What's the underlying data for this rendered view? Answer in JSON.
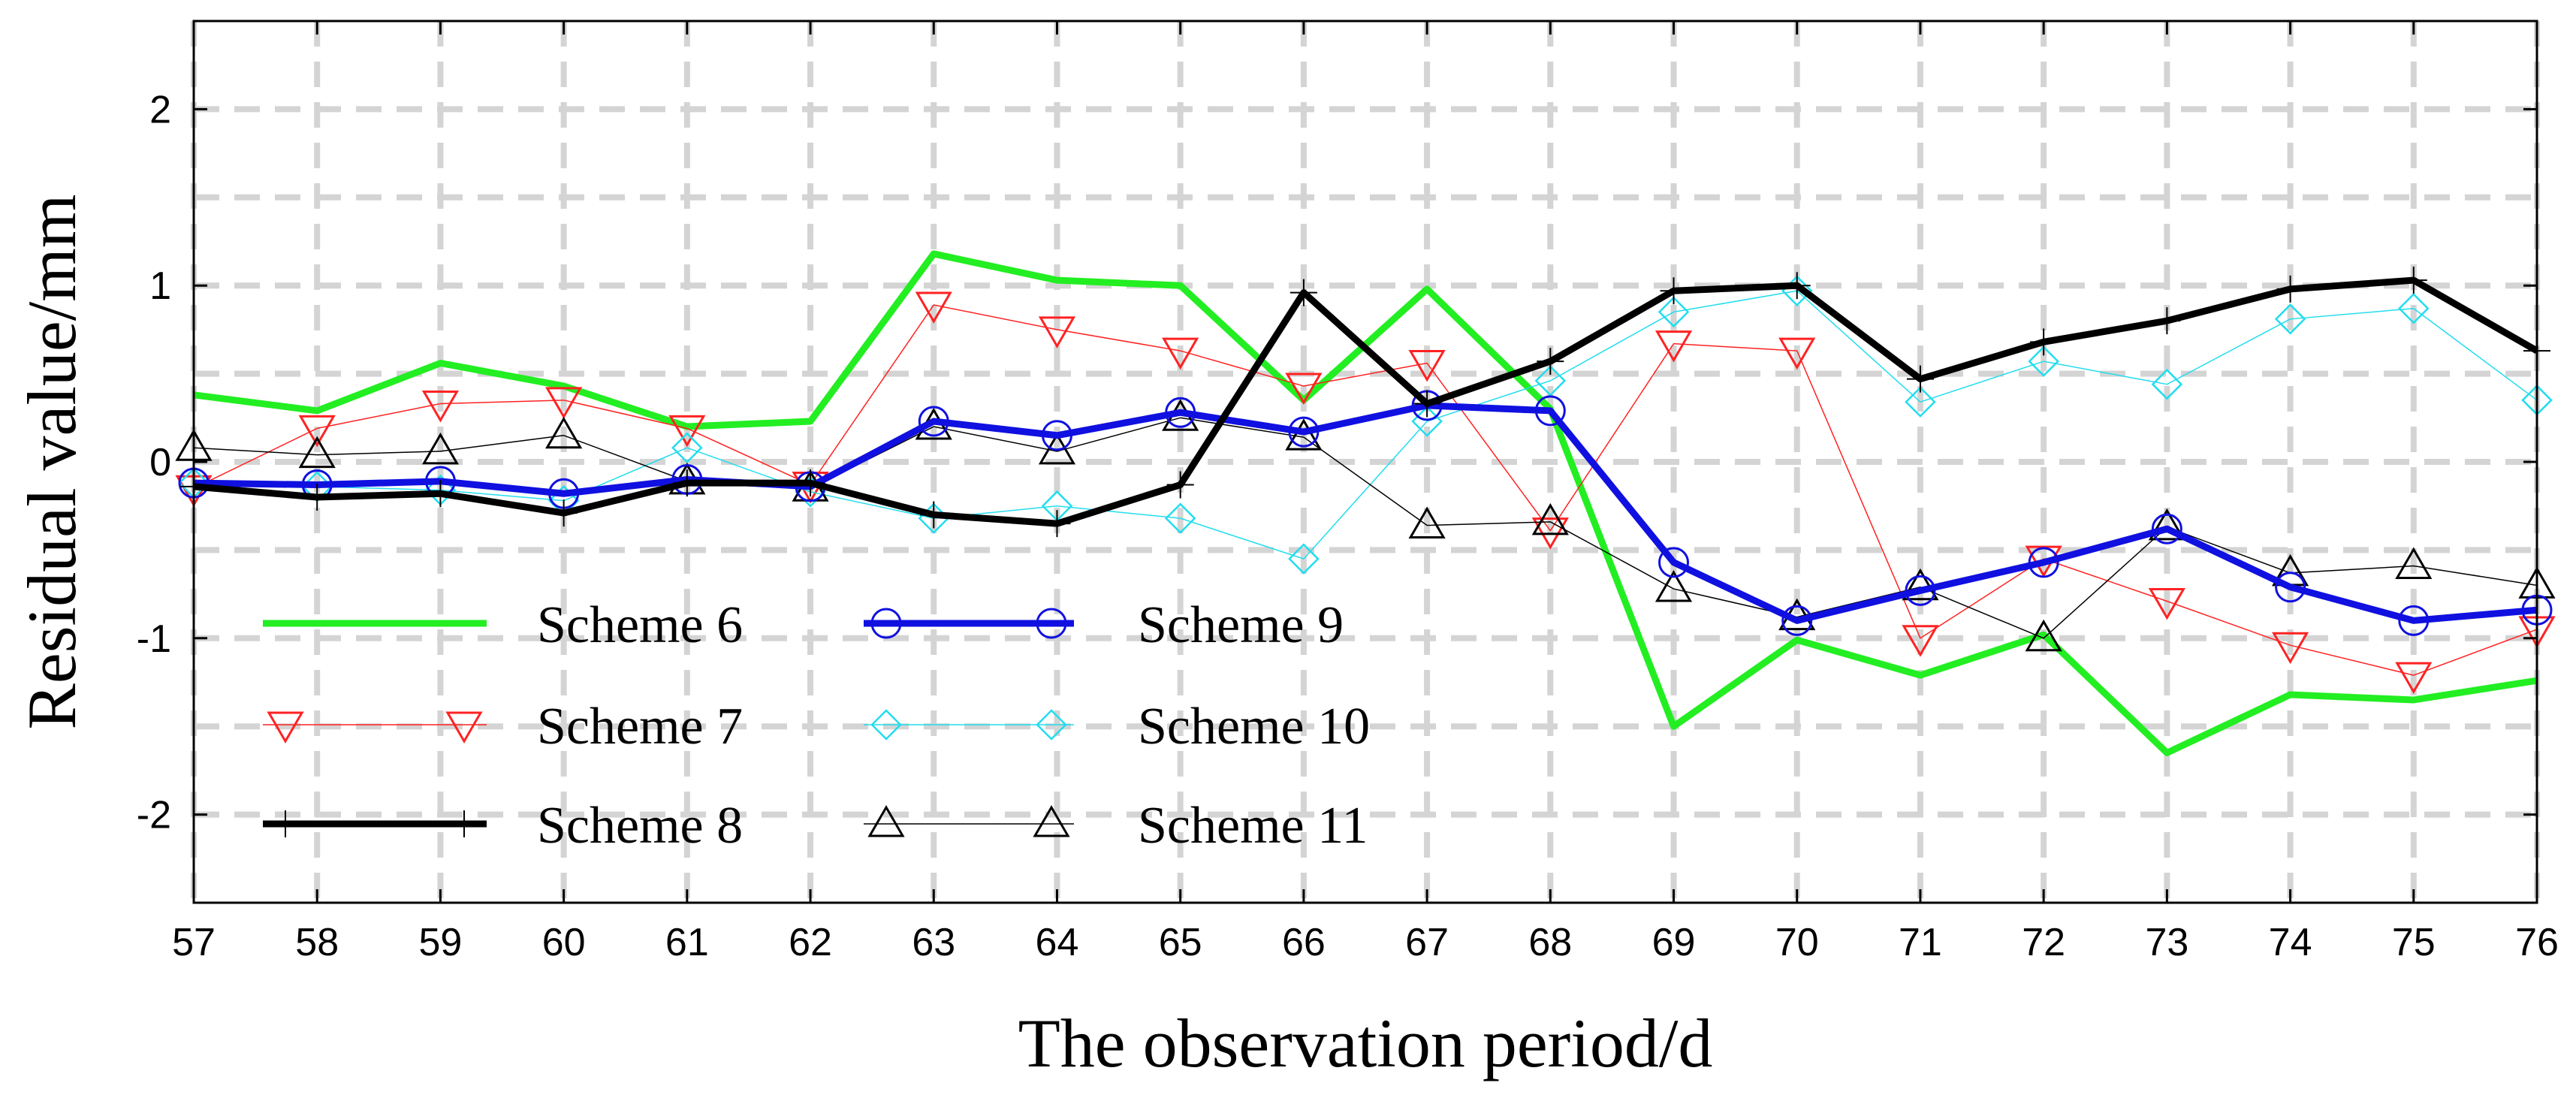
{
  "chart_data": {
    "type": "line",
    "title": "",
    "xlabel": "The observation period/d",
    "ylabel": "Residual value/mm",
    "x": [
      57,
      58,
      59,
      60,
      61,
      62,
      63,
      64,
      65,
      66,
      67,
      68,
      69,
      70,
      71,
      72,
      73,
      74,
      75,
      76
    ],
    "xlim": [
      57,
      76
    ],
    "ylim": [
      -2.5,
      2.5
    ],
    "yticks": [
      -2,
      -1,
      0,
      1,
      2
    ],
    "grid": true,
    "legend_position": "lower-left",
    "series": [
      {
        "name": "Scheme 6",
        "color": "#22ee22",
        "marker": "none",
        "line": "thick",
        "values": [
          0.38,
          0.29,
          0.56,
          0.43,
          0.2,
          0.23,
          1.18,
          1.03,
          1.0,
          0.35,
          0.98,
          0.3,
          -1.5,
          -1.01,
          -1.21,
          -0.98,
          -1.65,
          -1.32,
          -1.35,
          -1.24
        ]
      },
      {
        "name": "Scheme 7",
        "color": "#ff2222",
        "marker": "triangle-down",
        "line": "thin",
        "values": [
          -0.15,
          0.19,
          0.33,
          0.35,
          0.19,
          -0.13,
          0.89,
          0.75,
          0.63,
          0.43,
          0.56,
          -0.39,
          0.67,
          0.63,
          -1.0,
          -0.55,
          -0.79,
          -1.04,
          -1.21,
          -0.95
        ]
      },
      {
        "name": "Scheme 8",
        "color": "#000000",
        "marker": "plus",
        "line": "thick",
        "values": [
          -0.14,
          -0.2,
          -0.18,
          -0.29,
          -0.12,
          -0.12,
          -0.3,
          -0.35,
          -0.13,
          0.96,
          0.33,
          0.57,
          0.97,
          1.0,
          0.47,
          0.68,
          0.8,
          0.98,
          1.03,
          0.63
        ]
      },
      {
        "name": "Scheme 9",
        "color": "#1010e0",
        "marker": "circle",
        "line": "thick",
        "values": [
          -0.12,
          -0.13,
          -0.11,
          -0.18,
          -0.1,
          -0.14,
          0.23,
          0.15,
          0.28,
          0.17,
          0.32,
          0.29,
          -0.57,
          -0.9,
          -0.73,
          -0.57,
          -0.38,
          -0.71,
          -0.9,
          -0.84
        ]
      },
      {
        "name": "Scheme 10",
        "color": "#22ddee",
        "marker": "diamond",
        "line": "thin",
        "values": [
          -0.12,
          -0.14,
          -0.16,
          -0.22,
          0.08,
          -0.17,
          -0.32,
          -0.25,
          -0.32,
          -0.55,
          0.23,
          0.46,
          0.85,
          0.97,
          0.34,
          0.57,
          0.44,
          0.81,
          0.87,
          0.35
        ]
      },
      {
        "name": "Scheme 11",
        "color": "#000000",
        "marker": "triangle-up",
        "line": "thin",
        "values": [
          0.08,
          0.04,
          0.06,
          0.15,
          -0.11,
          -0.15,
          0.2,
          0.06,
          0.25,
          0.14,
          -0.36,
          -0.34,
          -0.72,
          -0.88,
          -0.71,
          -1.0,
          -0.37,
          -0.63,
          -0.59,
          -0.7
        ]
      }
    ]
  }
}
